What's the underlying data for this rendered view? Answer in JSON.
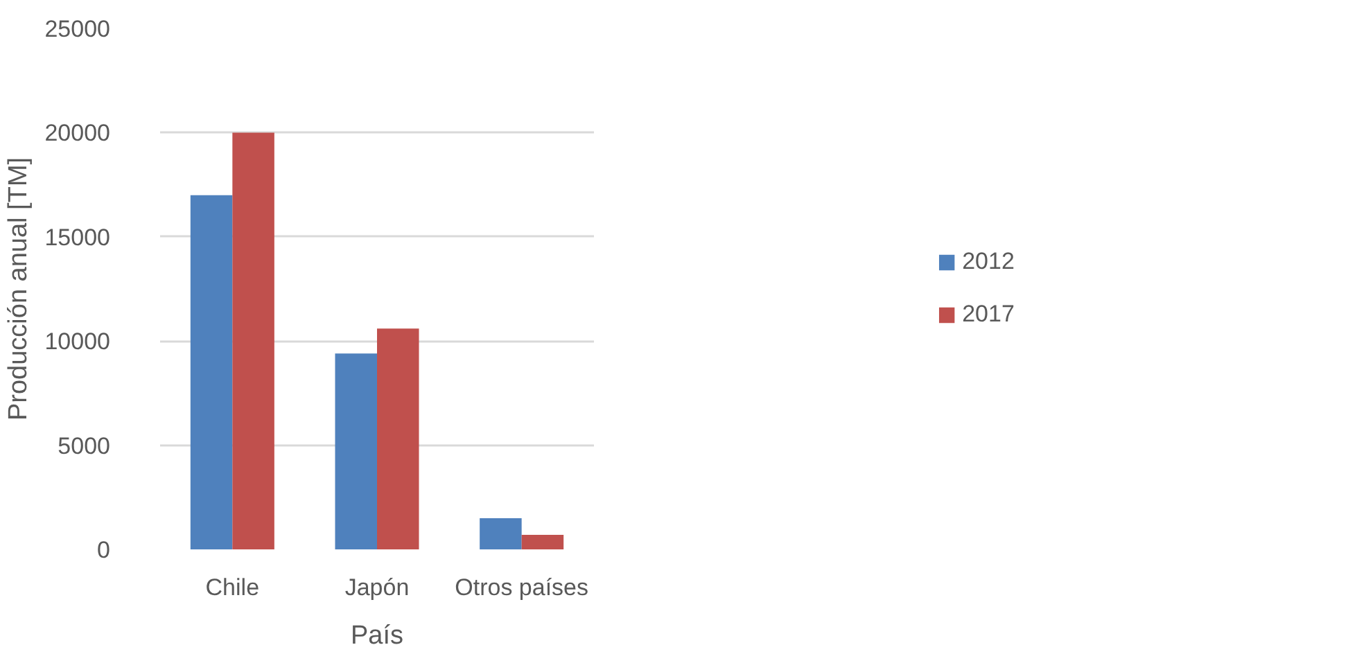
{
  "chart_data": {
    "type": "bar",
    "xlabel": "País",
    "ylabel": "Producción anual [TM]",
    "categories": [
      "Chile",
      "Japón",
      "Otros países"
    ],
    "series": [
      {
        "name": "2012",
        "color": "#4f81bd",
        "values": [
          17000,
          9400,
          1500
        ]
      },
      {
        "name": "2017",
        "color": "#c0504d",
        "values": [
          20000,
          10600,
          700
        ]
      }
    ],
    "ylim": [
      0,
      25000
    ],
    "yticks": [
      0,
      5000,
      10000,
      15000,
      20000,
      25000
    ],
    "grid": "y",
    "legend": "right"
  }
}
